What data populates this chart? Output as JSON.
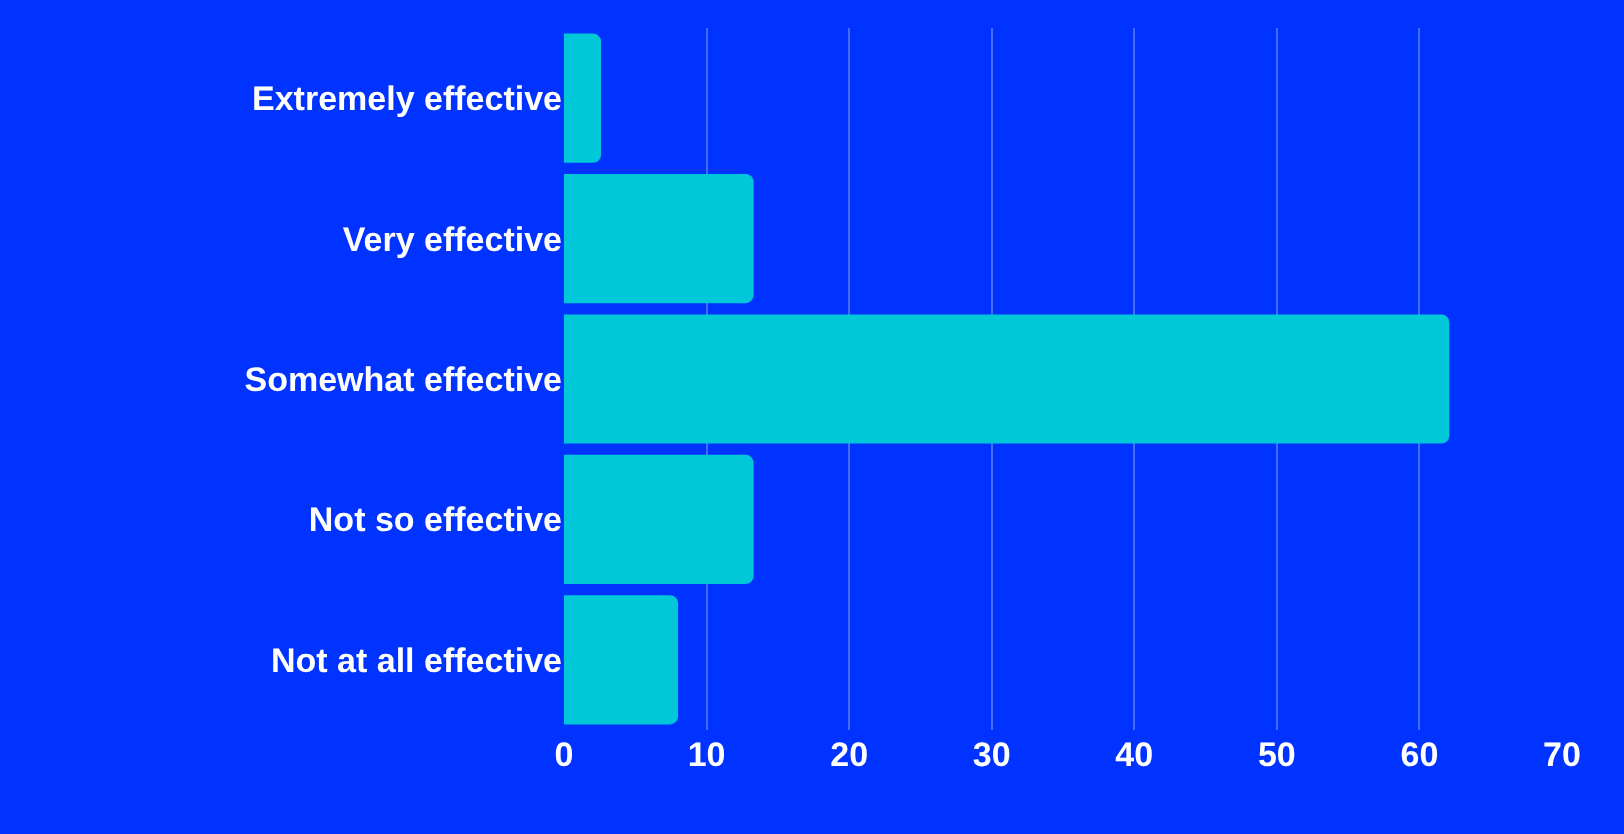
{
  "chart_data": {
    "type": "bar",
    "orientation": "horizontal",
    "categories": [
      "Extremely effective",
      "Very effective",
      "Somewhat effective",
      "Not so effective",
      "Not at all effective"
    ],
    "values": [
      2.6,
      13.3,
      62.1,
      13.3,
      8.0
    ],
    "color": "#00c8d8",
    "xlim": [
      0,
      70
    ],
    "xticks": [
      0,
      10,
      20,
      30,
      40,
      50,
      60,
      70
    ],
    "grid": "x"
  }
}
